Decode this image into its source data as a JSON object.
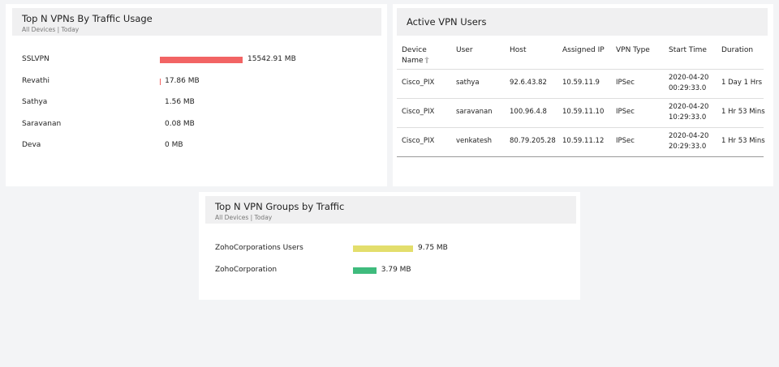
{
  "vpn_traffic": {
    "title": "Top N VPNs By Traffic Usage",
    "subtitle": "All Devices | Today",
    "categories": [
      "SSLVPN",
      "Revathi",
      "Sathya",
      "Saravanan",
      "Deva"
    ],
    "values": [
      15542.91,
      17.86,
      1.56,
      0.08,
      0
    ],
    "value_labels": [
      "15542.91 MB",
      "17.86 MB",
      "1.56 MB",
      "0.08 MB",
      "0 MB"
    ],
    "color": "#f26464"
  },
  "active_users": {
    "title": "Active VPN Users",
    "columns": [
      "Device Name",
      "User",
      "Host",
      "Assigned IP",
      "VPN Type",
      "Start Time",
      "Duration"
    ],
    "rows": [
      [
        "Cisco_PIX",
        "sathya",
        "92.6.43.82",
        "10.59.11.9",
        "IPSec",
        "2020-04-20 00:29:33.0",
        "1 Day 1 Hrs"
      ],
      [
        "Cisco_PIX",
        "saravanan",
        "100.96.4.8",
        "10.59.11.10",
        "IPSec",
        "2020-04-20 10:29:33.0",
        "1 Hr 53 Mins"
      ],
      [
        "Cisco_PIX",
        "venkatesh",
        "80.79.205.28",
        "10.59.11.12",
        "IPSec",
        "2020-04-20 20:29:33.0",
        "1 Hr 53 Mins"
      ]
    ]
  },
  "vpn_groups": {
    "title": "Top N VPN Groups by Traffic",
    "subtitle": "All Devices | Today",
    "categories": [
      "ZohoCorporations Users",
      "ZohoCorporation"
    ],
    "values": [
      9.75,
      3.79
    ],
    "value_labels": [
      "9.75 MB",
      "3.79 MB"
    ],
    "colors": [
      "#e3de6c",
      "#3fbb7d"
    ]
  }
}
